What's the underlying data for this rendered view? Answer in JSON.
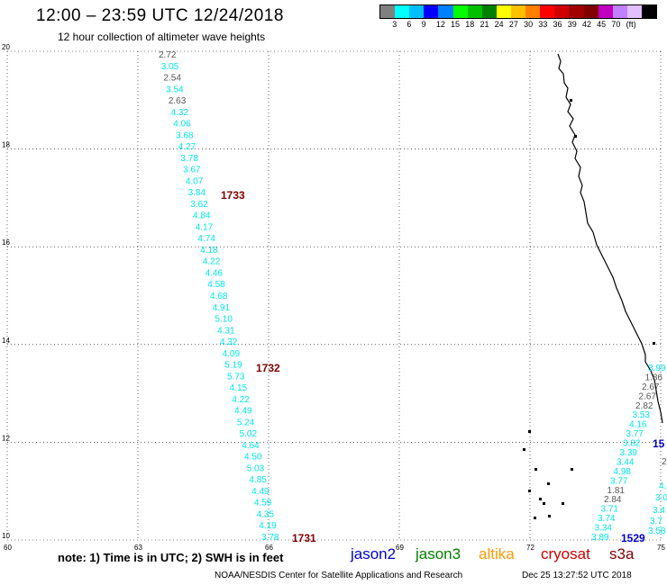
{
  "header": {
    "title": "12:00 – 23:59 UTC 12/24/2018",
    "subtitle": "12 hour collection of altimeter wave heights"
  },
  "legend": {
    "colors": [
      "#808080",
      "#00ffff",
      "#00bfff",
      "#0000ff",
      "#0080ff",
      "#00ff00",
      "#00c000",
      "#008000",
      "#ffff00",
      "#ffc000",
      "#ff8000",
      "#ff0000",
      "#d00000",
      "#a00000",
      "#800000",
      "#c000c0",
      "#c080ff",
      "#e0c0ff",
      "#000000"
    ],
    "labels": [
      "3",
      "6",
      "9",
      "12",
      "15",
      "18",
      "21",
      "24",
      "27",
      "30",
      "33",
      "36",
      "39",
      "42",
      "45",
      "70",
      "(ft)"
    ]
  },
  "axes": {
    "lat_labels": [
      "20",
      "18",
      "16",
      "14",
      "12",
      "10"
    ],
    "lon_labels": [
      "60",
      "63",
      "66",
      "69",
      "72",
      "75"
    ]
  },
  "tracks": {
    "track_1731": {
      "time_label": "1731",
      "values": [
        {
          "v": "2.72",
          "c": "gray"
        },
        {
          "v": "3.05",
          "c": "cyan"
        },
        {
          "v": "2.54",
          "c": "gray"
        },
        {
          "v": "3.54",
          "c": "cyan"
        },
        {
          "v": "2.63",
          "c": "gray"
        },
        {
          "v": "4.32",
          "c": "cyan"
        },
        {
          "v": "4.06",
          "c": "cyan"
        },
        {
          "v": "3.68",
          "c": "cyan"
        },
        {
          "v": "4.27",
          "c": "cyan"
        },
        {
          "v": "3.78",
          "c": "cyan"
        },
        {
          "v": "3.67",
          "c": "cyan"
        },
        {
          "v": "4.07",
          "c": "cyan"
        },
        {
          "v": "3.84",
          "c": "cyan"
        },
        {
          "v": "3.62",
          "c": "cyan"
        },
        {
          "v": "4.84",
          "c": "cyan"
        },
        {
          "v": "4.17",
          "c": "cyan"
        },
        {
          "v": "4.74",
          "c": "cyan"
        },
        {
          "v": "4.18",
          "c": "cyan"
        },
        {
          "v": "4.22",
          "c": "cyan"
        },
        {
          "v": "4.46",
          "c": "cyan"
        },
        {
          "v": "4.58",
          "c": "cyan"
        },
        {
          "v": "4.68",
          "c": "cyan"
        },
        {
          "v": "4.91",
          "c": "cyan"
        },
        {
          "v": "5.10",
          "c": "cyan"
        },
        {
          "v": "4.31",
          "c": "cyan"
        },
        {
          "v": "4.32",
          "c": "cyan"
        },
        {
          "v": "4.09",
          "c": "cyan"
        },
        {
          "v": "5.19",
          "c": "cyan"
        },
        {
          "v": "5.73",
          "c": "cyan"
        },
        {
          "v": "4.15",
          "c": "cyan"
        },
        {
          "v": "4.22",
          "c": "cyan"
        },
        {
          "v": "4.49",
          "c": "cyan"
        },
        {
          "v": "5.24",
          "c": "cyan"
        },
        {
          "v": "5.02",
          "c": "cyan"
        },
        {
          "v": "4.64",
          "c": "cyan"
        },
        {
          "v": "4.50",
          "c": "cyan"
        },
        {
          "v": "5.03",
          "c": "cyan"
        },
        {
          "v": "4.85",
          "c": "cyan"
        },
        {
          "v": "4.49",
          "c": "cyan"
        },
        {
          "v": "4.59",
          "c": "cyan"
        },
        {
          "v": "4.35",
          "c": "cyan"
        },
        {
          "v": "4.19",
          "c": "cyan"
        },
        {
          "v": "3.78",
          "c": "cyan"
        }
      ],
      "time_markers": [
        "1733",
        "1732",
        "1731"
      ]
    },
    "track_1529": {
      "time_label": "1529",
      "values": [
        {
          "v": "3.99",
          "c": "cyan"
        },
        {
          "v": "1.86",
          "c": "gray"
        },
        {
          "v": "2.67",
          "c": "gray"
        },
        {
          "v": "2.67",
          "c": "gray"
        },
        {
          "v": "2.82",
          "c": "gray"
        },
        {
          "v": "3.53",
          "c": "cyan"
        },
        {
          "v": "4.16",
          "c": "cyan"
        },
        {
          "v": "3.77",
          "c": "cyan"
        },
        {
          "v": "3.82",
          "c": "cyan"
        },
        {
          "v": "3.39",
          "c": "cyan"
        },
        {
          "v": "3.44",
          "c": "cyan"
        },
        {
          "v": "4.98",
          "c": "cyan"
        },
        {
          "v": "3.77",
          "c": "cyan"
        },
        {
          "v": "1.81",
          "c": "gray"
        },
        {
          "v": "2.84",
          "c": "gray"
        },
        {
          "v": "3.71",
          "c": "cyan"
        },
        {
          "v": "3.74",
          "c": "cyan"
        },
        {
          "v": "3.34",
          "c": "cyan"
        },
        {
          "v": "3.89",
          "c": "cyan"
        }
      ],
      "edge_values": [
        {
          "v": "15",
          "c": "blue"
        },
        {
          "v": "2",
          "c": "gray"
        },
        {
          "v": "4.",
          "c": "cyan"
        },
        {
          "v": "3.0",
          "c": "cyan"
        },
        {
          "v": "3.4",
          "c": "cyan"
        },
        {
          "v": "3.7",
          "c": "cyan"
        },
        {
          "v": "3.58",
          "c": "cyan"
        }
      ]
    }
  },
  "footer": {
    "note": "note: 1) Time is in UTC; 2) SWH is in feet",
    "satellites": [
      {
        "name": "jason2",
        "color": "#0000cc"
      },
      {
        "name": "jason3",
        "color": "#008000"
      },
      {
        "name": "altika",
        "color": "#ff9900"
      },
      {
        "name": "cryosat",
        "color": "#cc0000"
      },
      {
        "name": "s3a",
        "color": "#800000"
      }
    ],
    "credit": "NOAA/NESDIS Center for Satellite Applications and Research",
    "timestamp": "Dec 25 13:27:52 UTC 2018"
  }
}
